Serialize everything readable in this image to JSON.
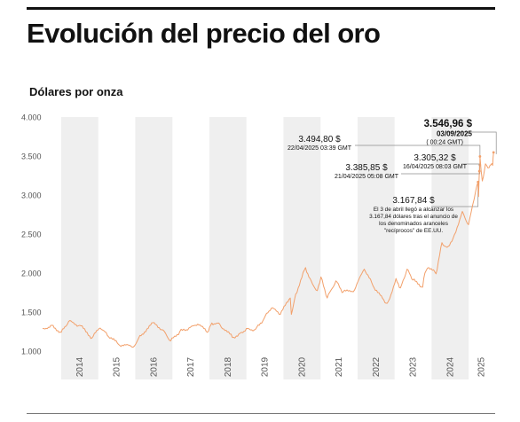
{
  "title": "Evolución del precio del oro",
  "subtitle": "Dólares por onza",
  "colors": {
    "line": "#f2a06b",
    "band": "#efefef",
    "guide": "#8c8c8c",
    "text": "#111111",
    "axis_text": "#555555"
  },
  "chart_data": {
    "type": "line",
    "title": "Evolución del precio del oro",
    "ylabel": "Dólares por onza",
    "xlabel": "",
    "ylim": [
      1000,
      4000
    ],
    "xlim": [
      "2013-07-01",
      "2025-09-10"
    ],
    "grid": false,
    "y_ticks": [
      {
        "value": 1000,
        "label": "1.000"
      },
      {
        "value": 1500,
        "label": "1.500"
      },
      {
        "value": 2000,
        "label": "2.000"
      },
      {
        "value": 2500,
        "label": "2.500"
      },
      {
        "value": 3000,
        "label": "3.000"
      },
      {
        "value": 3500,
        "label": "3.500"
      },
      {
        "value": 4000,
        "label": "4.000"
      }
    ],
    "x_ticks": [
      "2014",
      "2015",
      "2016",
      "2017",
      "2018",
      "2019",
      "2020",
      "2021",
      "2022",
      "2023",
      "2024",
      "2025"
    ],
    "series": [
      {
        "x": [
          "2013-07-01",
          "2013-10-01",
          "2014-01-01",
          "2014-03-15",
          "2014-07-01",
          "2014-11-01",
          "2015-01-20",
          "2015-04-01",
          "2015-07-20",
          "2015-12-10",
          "2016-02-15",
          "2016-07-05",
          "2016-10-01",
          "2016-12-15",
          "2017-03-15",
          "2017-06-01",
          "2017-09-08",
          "2017-12-12",
          "2018-01-25",
          "2018-04-15",
          "2018-08-15",
          "2018-11-01",
          "2019-01-01",
          "2019-04-01",
          "2019-06-25",
          "2019-09-04",
          "2019-12-01",
          "2020-03-08",
          "2020-03-19",
          "2020-05-01",
          "2020-08-06",
          "2020-10-01",
          "2020-11-30",
          "2021-01-05",
          "2021-03-08",
          "2021-06-01",
          "2021-08-01",
          "2021-12-01",
          "2022-03-08",
          "2022-06-01",
          "2022-09-28",
          "2022-11-01",
          "2023-01-15",
          "2023-02-28",
          "2023-05-04",
          "2023-07-01",
          "2023-10-05",
          "2023-10-27",
          "2023-12-04",
          "2024-02-14",
          "2024-04-12",
          "2024-06-01",
          "2024-08-01",
          "2024-10-30",
          "2024-12-30",
          "2025-01-25",
          "2025-02-24",
          "2025-04-03",
          "2025-04-08",
          "2025-04-16",
          "2025-04-21",
          "2025-04-22",
          "2025-05-15",
          "2025-06-15",
          "2025-07-20",
          "2025-08-10",
          "2025-08-25",
          "2025-09-03"
        ],
        "y": [
          1290,
          1330,
          1240,
          1380,
          1330,
          1170,
          1295,
          1200,
          1085,
          1050,
          1200,
          1365,
          1270,
          1130,
          1250,
          1270,
          1345,
          1240,
          1360,
          1340,
          1175,
          1230,
          1290,
          1280,
          1420,
          1550,
          1470,
          1680,
          1470,
          1730,
          2070,
          1900,
          1775,
          1950,
          1680,
          1900,
          1750,
          1780,
          2050,
          1840,
          1620,
          1640,
          1930,
          1810,
          2050,
          1910,
          1820,
          2000,
          2070,
          1990,
          2390,
          2330,
          2450,
          2790,
          2620,
          2780,
          2950,
          3167.84,
          2980,
          3305.32,
          3385.85,
          3494.8,
          3180,
          3400,
          3350,
          3390,
          3380,
          3546.96
        ]
      }
    ],
    "annotations": [
      {
        "date": "2025-09-03",
        "value": 3546.96,
        "price": "3.546,96 $",
        "date_text": "03/09/2025",
        "time_text": "( 00:24 GMT)",
        "note": []
      },
      {
        "date": "2025-04-22",
        "value": 3494.8,
        "price": "3.494,80 $",
        "date_text": "22/04/2025 03:39 GMT",
        "time_text": "",
        "note": []
      },
      {
        "date": "2025-04-21",
        "value": 3385.85,
        "price": "3.385,85 $",
        "date_text": "21/04/2025 05:08 GMT",
        "time_text": "",
        "note": []
      },
      {
        "date": "2025-04-16",
        "value": 3305.32,
        "price": "3.305,32 $",
        "date_text": "16/04/2025 08:03 GMT",
        "time_text": "",
        "note": []
      },
      {
        "date": "2025-04-03",
        "value": 3167.84,
        "price": "3.167,84 $",
        "date_text": "",
        "time_text": "",
        "note": [
          "El 3 de abril llegó a alcanzar los",
          "3.167,84 dólares tras el anuncio de",
          "los denominados aranceles",
          "\"recíprocos\" de EE.UU."
        ]
      }
    ]
  }
}
